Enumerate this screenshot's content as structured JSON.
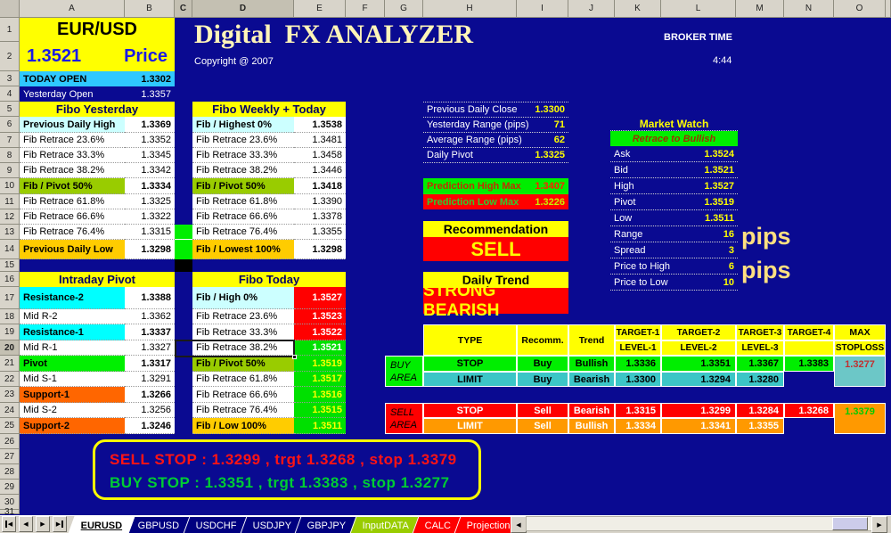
{
  "colors": {
    "sheet_bg": "#0a0a91",
    "accent_yellow": "#ffff00",
    "accent_red": "#ff0000",
    "accent_green": "#00ee00",
    "accent_cyan": "#00ffff",
    "light_cyan": "#ccffff",
    "olive": "#99cc00",
    "gold": "#ffcc00",
    "orange": "#ff9900",
    "support_orange": "#ff6600",
    "buy_limit_teal": "#3cc6c6",
    "title_cream": "#fff5b8",
    "price_blue": "#1a1ae6"
  },
  "grid": {
    "columns": [
      "A",
      "B",
      "C",
      "D",
      "E",
      "F",
      "G",
      "H",
      "I",
      "J",
      "K",
      "L",
      "M",
      "N",
      "O"
    ],
    "rows": [
      "1",
      "2",
      "3",
      "4",
      "5",
      "6",
      "7",
      "8",
      "9",
      "10",
      "11",
      "12",
      "13",
      "14",
      "15",
      "16",
      "17",
      "18",
      "19",
      "20",
      "21",
      "22",
      "23",
      "24",
      "25",
      "26",
      "27",
      "28",
      "29",
      "30",
      "31"
    ]
  },
  "header": {
    "title": "Digital  FX ANALYZER",
    "copyright": "Copyright @ 2007",
    "broker_time_label": "BROKER TIME",
    "broker_time_value": "4:44"
  },
  "quote": {
    "pair": "EUR/USD",
    "price": "1.3521",
    "price_label": "Price",
    "today_open_label": "TODAY OPEN",
    "today_open_value": "1.3302",
    "yesterday_open_label": "Yesterday Open",
    "yesterday_open_value": "1.3357"
  },
  "fibo_yesterday": {
    "title": "Fibo Yesterday",
    "rows": [
      {
        "label": "Previous Daily High",
        "value": "1.3369",
        "style": "high"
      },
      {
        "label": "Fib Retrace 23.6%",
        "value": "1.3352",
        "style": "plain"
      },
      {
        "label": "Fib Retrace 33.3%",
        "value": "1.3345",
        "style": "plain"
      },
      {
        "label": "Fib Retrace 38.2%",
        "value": "1.3342",
        "style": "plain"
      },
      {
        "label": "Fib / Pivot 50%",
        "value": "1.3334",
        "style": "olive"
      },
      {
        "label": "Fib Retrace 61.8%",
        "value": "1.3325",
        "style": "plain"
      },
      {
        "label": "Fib Retrace 66.6%",
        "value": "1.3322",
        "style": "plain"
      },
      {
        "label": "Fib Retrace 76.4%",
        "value": "1.3315",
        "style": "plain"
      },
      {
        "label": "Previous Daily Low",
        "value": "1.3298",
        "style": "gold"
      }
    ]
  },
  "fibo_weekly": {
    "title": "Fibo Weekly + Today",
    "rows": [
      {
        "label": "Fib / Highest 0%",
        "value": "1.3538",
        "style": "high"
      },
      {
        "label": "Fib Retrace 23.6%",
        "value": "1.3481",
        "style": "plain"
      },
      {
        "label": "Fib Retrace 33.3%",
        "value": "1.3458",
        "style": "plain"
      },
      {
        "label": "Fib Retrace 38.2%",
        "value": "1.3446",
        "style": "plain"
      },
      {
        "label": "Fib / Pivot 50%",
        "value": "1.3418",
        "style": "olive"
      },
      {
        "label": "Fib Retrace 61.8%",
        "value": "1.3390",
        "style": "plain"
      },
      {
        "label": "Fib Retrace 66.6%",
        "value": "1.3378",
        "style": "plain"
      },
      {
        "label": "Fib Retrace 76.4%",
        "value": "1.3355",
        "style": "plain"
      },
      {
        "label": "Fib / Lowest 100%",
        "value": "1.3298",
        "style": "gold"
      }
    ]
  },
  "intraday_pivot": {
    "title": "Intraday Pivot",
    "rows": [
      {
        "label": "Resistance-2",
        "value": "1.3388",
        "style": "cyan"
      },
      {
        "label": "Mid R-2",
        "value": "1.3362",
        "style": "plain"
      },
      {
        "label": "Resistance-1",
        "value": "1.3337",
        "style": "cyan"
      },
      {
        "label": "Mid R-1",
        "value": "1.3327",
        "style": "plain"
      },
      {
        "label": "Pivot",
        "value": "1.3317",
        "style": "green"
      },
      {
        "label": "Mid S-1",
        "value": "1.3291",
        "style": "plain"
      },
      {
        "label": "Support-1",
        "value": "1.3266",
        "style": "orange"
      },
      {
        "label": "Mid S-2",
        "value": "1.3256",
        "style": "plain"
      },
      {
        "label": "Support-2",
        "value": "1.3246",
        "style": "orange"
      }
    ]
  },
  "fibo_today": {
    "title": "Fibo Today",
    "rows": [
      {
        "label": "Fib / High 0%",
        "value": "1.3527",
        "style": "high",
        "vstyle": "red",
        "selected": false
      },
      {
        "label": "Fib Retrace 23.6%",
        "value": "1.3523",
        "style": "plain",
        "vstyle": "red",
        "selected": false
      },
      {
        "label": "Fib Retrace 33.3%",
        "value": "1.3522",
        "style": "plain",
        "vstyle": "red",
        "selected": false
      },
      {
        "label": "Fib Retrace 38.2%",
        "value": "1.3521",
        "style": "plain",
        "vstyle": "green-w",
        "selected": true
      },
      {
        "label": "Fib / Pivot 50%",
        "value": "1.3519",
        "style": "olive",
        "vstyle": "green-y",
        "selected": false
      },
      {
        "label": "Fib Retrace 61.8%",
        "value": "1.3517",
        "style": "plain",
        "vstyle": "green-y",
        "selected": false
      },
      {
        "label": "Fib Retrace 66.6%",
        "value": "1.3516",
        "style": "plain",
        "vstyle": "green-y",
        "selected": false
      },
      {
        "label": "Fib Retrace 76.4%",
        "value": "1.3515",
        "style": "plain",
        "vstyle": "green-y",
        "selected": false
      },
      {
        "label": "Fib / Low 100%",
        "value": "1.3511",
        "style": "gold",
        "vstyle": "green-y",
        "selected": false
      }
    ]
  },
  "daily_info": {
    "rows": [
      {
        "label": "Previous Daily Close",
        "value": "1.3300"
      },
      {
        "label": "Yesterday Range (pips)",
        "value": "71"
      },
      {
        "label": "Average Range (pips)",
        "value": "62"
      },
      {
        "label": "Daily Pivot",
        "value": "1.3325"
      }
    ]
  },
  "predictions": [
    {
      "label": "Prediction High Max",
      "value": "1.3407",
      "type": "high"
    },
    {
      "label": "Prediction Low Max",
      "value": "1.3226",
      "type": "low"
    }
  ],
  "recommendation": {
    "header": "Recommendation",
    "value": "SELL"
  },
  "daily_trend": {
    "header": "Daily Trend",
    "value": "STRONG BEARISH"
  },
  "market_watch": {
    "title": "Market Watch",
    "status": "Retrace to Bullish",
    "rows": [
      {
        "label": "Ask",
        "value": "1.3524"
      },
      {
        "label": "Bid",
        "value": "1.3521"
      },
      {
        "label": "High",
        "value": "1.3527"
      },
      {
        "label": "Pivot",
        "value": "1.3519"
      },
      {
        "label": "Low",
        "value": "1.3511"
      },
      {
        "label": "Range",
        "value": "16"
      },
      {
        "label": "Spread",
        "value": "3"
      },
      {
        "label": "Price to High",
        "value": "6"
      },
      {
        "label": "Price to Low",
        "value": "10"
      }
    ],
    "pips_label_1": "pips",
    "pips_label_2": "pips"
  },
  "orders_table": {
    "headers": {
      "type": "TYPE",
      "recomm": "Recomm.",
      "trend": "Trend",
      "targets": [
        [
          "TARGET-1",
          "LEVEL-1"
        ],
        [
          "TARGET-2",
          "LEVEL-2"
        ],
        [
          "TARGET-3",
          "LEVEL-3"
        ],
        [
          "TARGET-4",
          ""
        ]
      ],
      "max_line1": "MAX",
      "max_line2": "STOPLOSS"
    },
    "buy_area_label": [
      "BUY",
      "AREA"
    ],
    "sell_area_label": [
      "SELL",
      "AREA"
    ],
    "buy_rows": [
      {
        "type": "STOP",
        "recomm": "Buy",
        "trend": "Bullish",
        "targets": [
          "1.3336",
          "1.3351",
          "1.3367",
          "1.3383"
        ]
      },
      {
        "type": "LIMIT",
        "recomm": "Buy",
        "trend": "Bearish",
        "targets": [
          "1.3300",
          "1.3294",
          "1.3280",
          ""
        ]
      }
    ],
    "buy_max_stoploss": "1.3277",
    "sell_rows": [
      {
        "type": "STOP",
        "recomm": "Sell",
        "trend": "Bearish",
        "targets": [
          "1.3315",
          "1.3299",
          "1.3284",
          "1.3268"
        ]
      },
      {
        "type": "LIMIT",
        "recomm": "Sell",
        "trend": "Bullish",
        "targets": [
          "1.3334",
          "1.3341",
          "1.3355",
          ""
        ]
      }
    ],
    "sell_max_stoploss": "1.3379"
  },
  "signal_box": {
    "sell_line": "SELL STOP : 1.3299 , trgt 1.3268 , stop 1.3379",
    "buy_line": "BUY STOP : 1.3351 , trgt 1.3383 , stop 1.3277"
  },
  "tabbar": {
    "tabs": [
      {
        "label": "EURUSD",
        "style": "active"
      },
      {
        "label": "GBPUSD",
        "style": "fx"
      },
      {
        "label": "USDCHF",
        "style": "fx"
      },
      {
        "label": "USDJPY",
        "style": "fx"
      },
      {
        "label": "GBPJPY",
        "style": "fx"
      },
      {
        "label": "InputDATA",
        "style": "input"
      },
      {
        "label": "CALC",
        "style": "red"
      },
      {
        "label": "Projection",
        "style": "red"
      }
    ]
  }
}
